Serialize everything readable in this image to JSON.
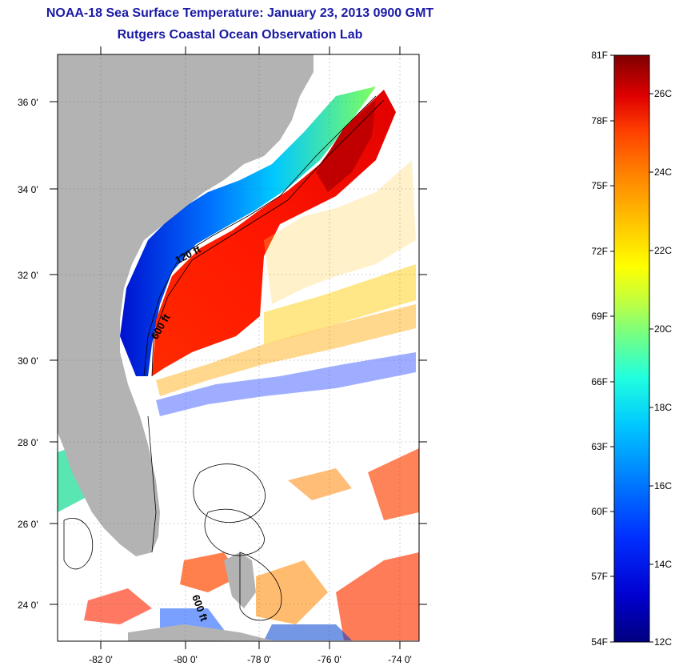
{
  "title": {
    "line1": "NOAA-18 Sea Surface Temperature:  January 23, 2013 0900 GMT",
    "line2": "Rutgers Coastal Ocean Observation Lab"
  },
  "map": {
    "x_ticks": [
      "-82 0'",
      "-80 0'",
      "-78 0'",
      "-76 0'",
      "-74 0'"
    ],
    "y_ticks": [
      "36 0'",
      "34 0'",
      "32 0'",
      "30 0'",
      "28 0'",
      "26 0'",
      "24 0'"
    ],
    "depth_labels": [
      "120 ft",
      "600 ft",
      "600 ft"
    ],
    "land_color": "#b3b3b3"
  },
  "colorbar": {
    "fahrenheit": [
      "81F",
      "78F",
      "75F",
      "72F",
      "69F",
      "66F",
      "63F",
      "60F",
      "57F",
      "54F"
    ],
    "celsius": [
      "26C",
      "24C",
      "22C",
      "20C",
      "18C",
      "16C",
      "14C",
      "12C"
    ],
    "colors": [
      "#00007f",
      "#0000d0",
      "#0030ff",
      "#0080ff",
      "#00c8ff",
      "#20ffdf",
      "#70ff88",
      "#c0ff40",
      "#ffff00",
      "#ffc000",
      "#ff8000",
      "#ff4000",
      "#e00000",
      "#7f0000"
    ]
  }
}
